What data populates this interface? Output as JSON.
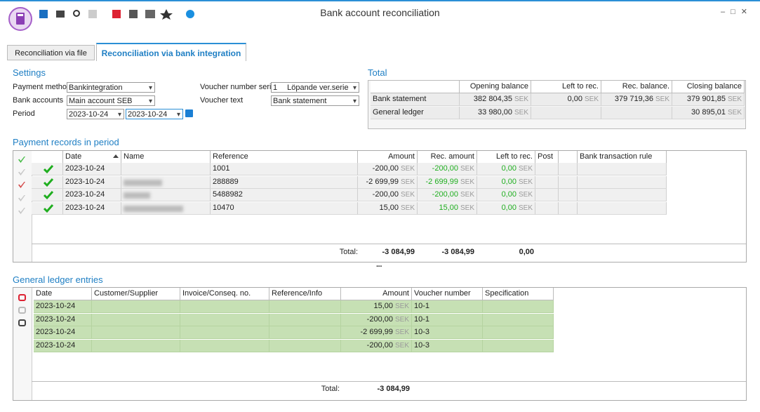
{
  "window": {
    "title": "Bank account reconciliation"
  },
  "tabs": [
    "Reconciliation via file",
    "Reconciliation via bank integration"
  ],
  "settings": {
    "title": "Settings",
    "fields": [
      {
        "label": "Payment method",
        "value": "Bankintegration"
      },
      {
        "label": "Bank accounts",
        "value": "Main account SEB"
      },
      {
        "label": "Period",
        "value": "2023-10-24",
        "value_to": "2023-10-24"
      },
      {
        "label": "Voucher number series",
        "code": "1",
        "value": "Löpande ver.serie"
      },
      {
        "label": "Voucher text",
        "value": "Bank statement"
      }
    ]
  },
  "currency": "SEK",
  "total": {
    "title": "Total",
    "columns": [
      "Opening balance",
      "Left to rec.",
      "Rec. balance.",
      "Closing balance"
    ],
    "rows": [
      {
        "label": "Bank statement",
        "values": [
          "382 804,35",
          "0,00",
          "379 719,36",
          "379 901,85"
        ]
      },
      {
        "label": "General ledger",
        "values": [
          "33 980,00",
          null,
          null,
          "30 895,01"
        ]
      }
    ]
  },
  "payments": {
    "title": "Payment records in period",
    "columns": [
      "Date",
      "Name",
      "Reference",
      "Amount",
      "Rec. amount",
      "Left to rec.",
      "Post",
      "Bank transaction rule"
    ],
    "rows": [
      {
        "date": "2023-10-24",
        "reference": "1001",
        "amount": "-200,00",
        "rec_amount": "-200,00",
        "left": "0,00"
      },
      {
        "date": "2023-10-24",
        "reference": "288889",
        "amount": "-2 699,99",
        "rec_amount": "-2 699,99",
        "left": "0,00"
      },
      {
        "date": "2023-10-24",
        "reference": "5488982",
        "amount": "-200,00",
        "rec_amount": "-200,00",
        "left": "0,00"
      },
      {
        "date": "2023-10-24",
        "reference": "10470",
        "amount": "15,00",
        "rec_amount": "15,00",
        "left": "0,00"
      }
    ],
    "total": {
      "label": "Total:",
      "amount": "-3 084,99",
      "rec_amount": "-3 084,99",
      "left": "0,00"
    }
  },
  "ledger": {
    "title": "General ledger entries",
    "columns": [
      "Date",
      "Customer/Supplier",
      "Invoice/Conseq. no.",
      "Reference/Info",
      "Amount",
      "Voucher number",
      "Specification"
    ],
    "rows": [
      {
        "date": "2023-10-24",
        "amount": "15,00",
        "voucher": "10-1"
      },
      {
        "date": "2023-10-24",
        "amount": "-200,00",
        "voucher": "10-1"
      },
      {
        "date": "2023-10-24",
        "amount": "-2 699,99",
        "voucher": "10-3"
      },
      {
        "date": "2023-10-24",
        "amount": "-200,00",
        "voucher": "10-3"
      }
    ],
    "total": {
      "label": "Total:",
      "amount": "-3 084,99"
    }
  }
}
